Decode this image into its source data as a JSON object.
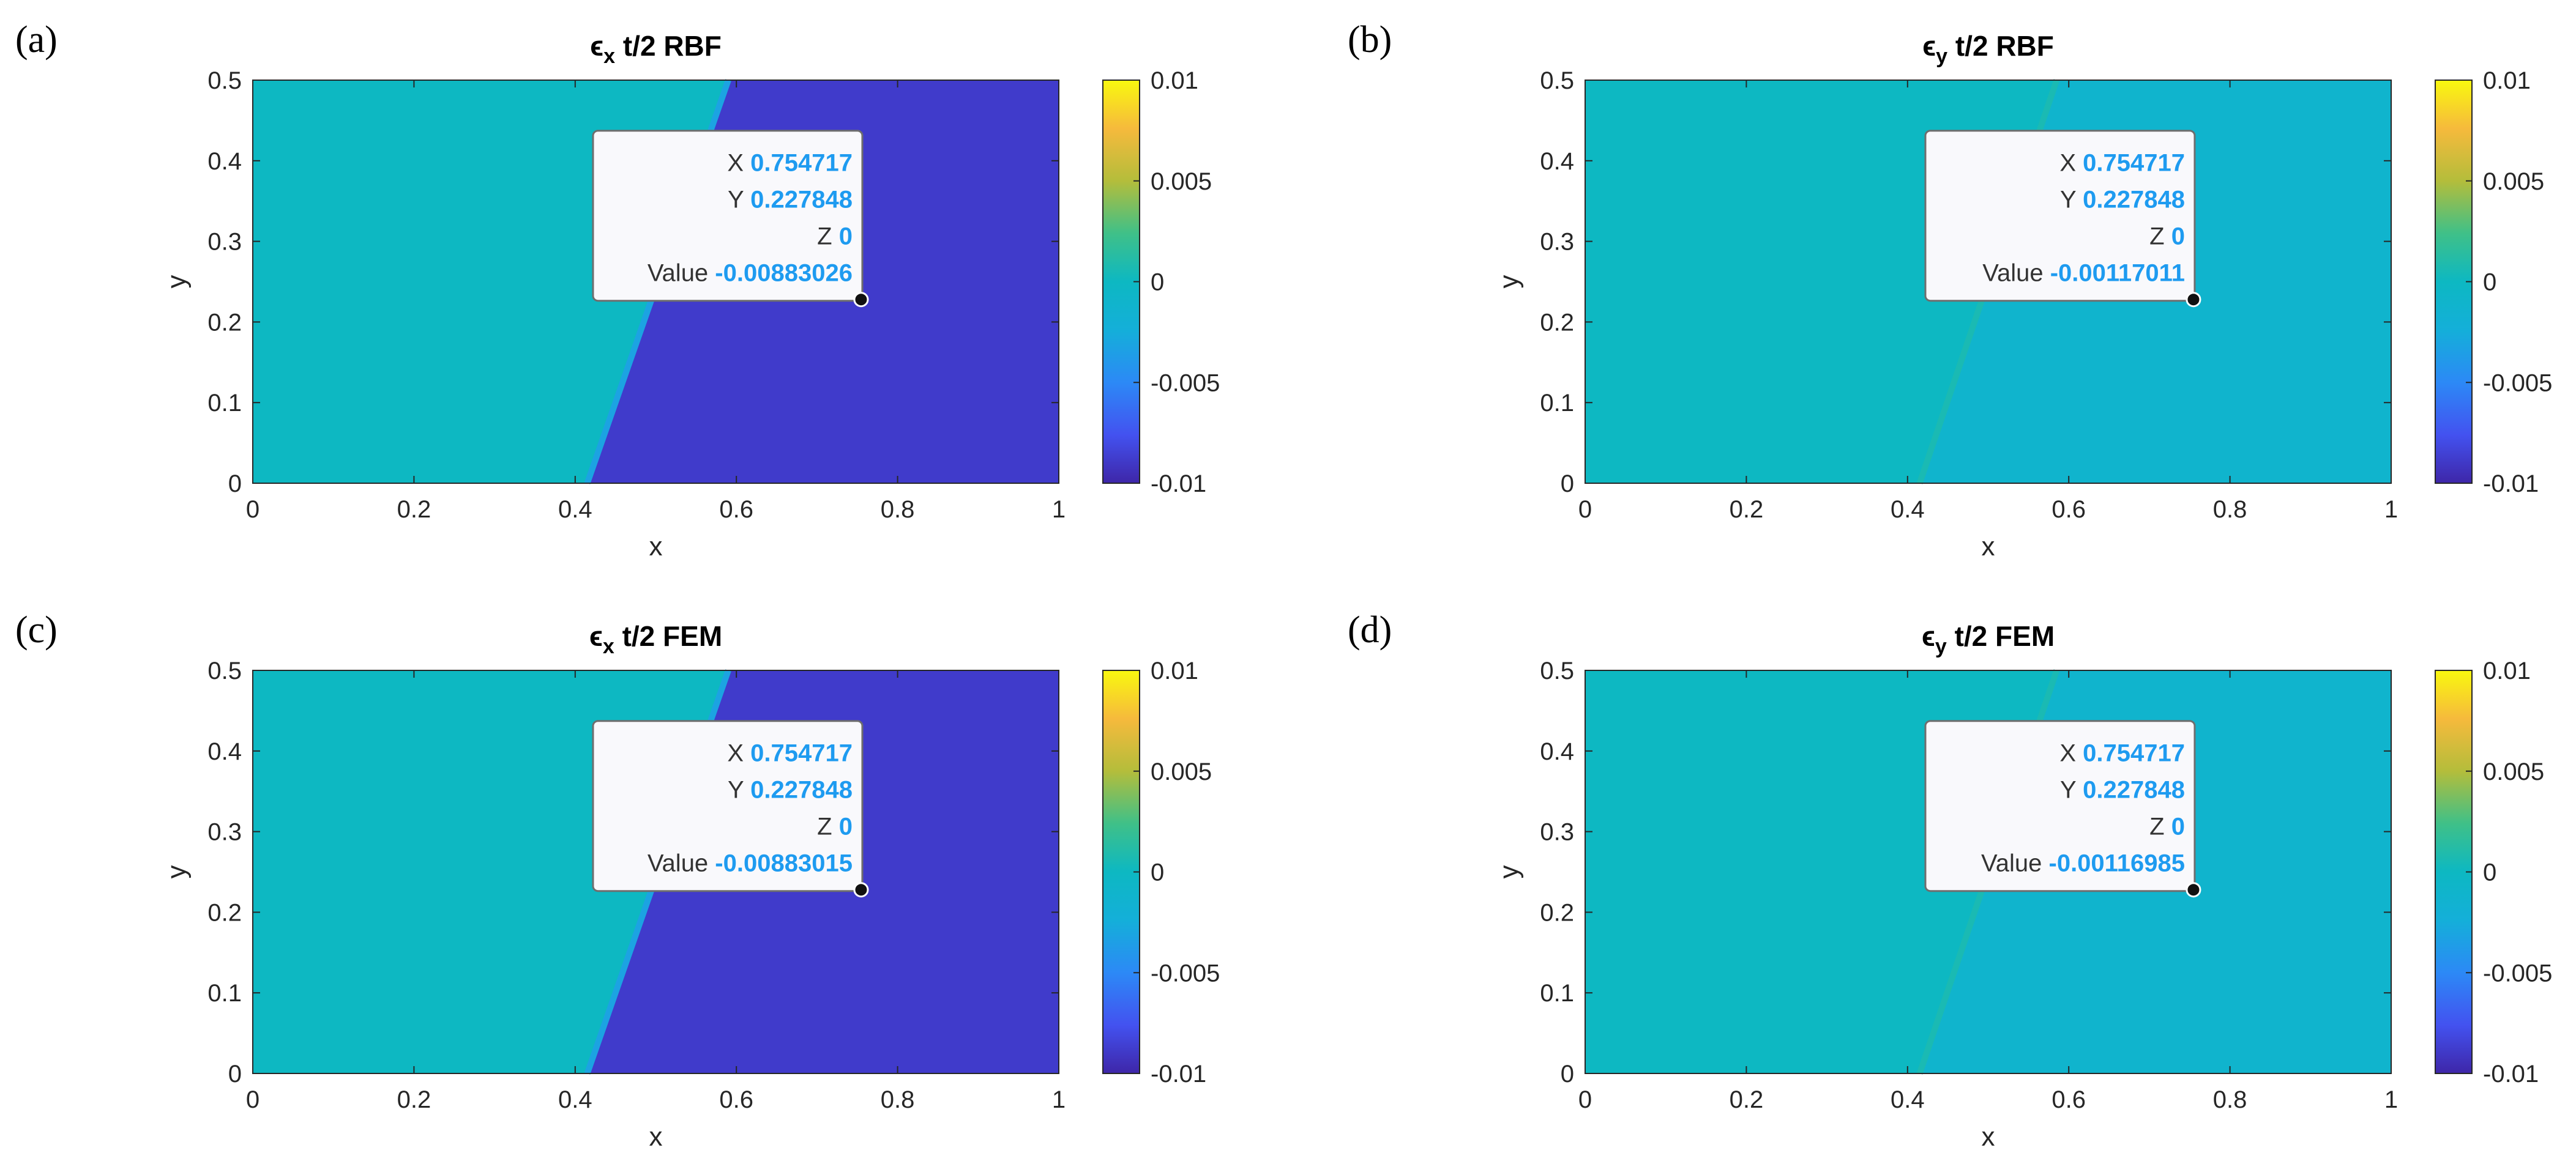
{
  "figure": {
    "colorbar": {
      "ticks": [
        "0.01",
        "0.005",
        "0",
        "-0.005",
        "-0.01"
      ],
      "stops": [
        {
          "offset": 0.0,
          "color": "#3e26a8"
        },
        {
          "offset": 0.12,
          "color": "#4352f0"
        },
        {
          "offset": 0.25,
          "color": "#2c89f6"
        },
        {
          "offset": 0.38,
          "color": "#14afd9"
        },
        {
          "offset": 0.5,
          "color": "#0db8c2"
        },
        {
          "offset": 0.62,
          "color": "#3fc088"
        },
        {
          "offset": 0.75,
          "color": "#b4bd3b"
        },
        {
          "offset": 0.88,
          "color": "#f6ba3c"
        },
        {
          "offset": 1.0,
          "color": "#f9f80f"
        }
      ]
    },
    "datatip": {
      "x_label": "X",
      "y_label": "Y",
      "z_label": "Z",
      "value_label": "Value",
      "highlight_color": "#1e9bf0"
    }
  },
  "chart_data": [
    {
      "type": "heatmap",
      "panel": "(a)",
      "title_symbol": "ϵ",
      "title_sub": "x",
      "title_rest": " t/2 RBF",
      "xlabel": "x",
      "ylabel": "y",
      "xlim": [
        0,
        1
      ],
      "ylim": [
        0,
        0.5
      ],
      "xticks": [
        "0",
        "0.2",
        "0.4",
        "0.6",
        "0.8",
        "1"
      ],
      "yticks": [
        "0",
        "0.1",
        "0.2",
        "0.3",
        "0.4",
        "0.5"
      ],
      "clim": [
        -0.01,
        0.01
      ],
      "left_region_value": 0.0,
      "right_region_value": -0.00883,
      "interface_bottom_x": 0.415,
      "interface_top_x": 0.59,
      "datatip": {
        "X": "0.754717",
        "Y": "0.227848",
        "Z": "0",
        "Value": "-0.00883026",
        "x": 0.754717,
        "y": 0.227848
      }
    },
    {
      "type": "heatmap",
      "panel": "(b)",
      "title_symbol": "ϵ",
      "title_sub": "y",
      "title_rest": " t/2 RBF",
      "xlabel": "x",
      "ylabel": "y",
      "xlim": [
        0,
        1
      ],
      "ylim": [
        0,
        0.5
      ],
      "xticks": [
        "0",
        "0.2",
        "0.4",
        "0.6",
        "0.8",
        "1"
      ],
      "yticks": [
        "0",
        "0.1",
        "0.2",
        "0.3",
        "0.4",
        "0.5"
      ],
      "clim": [
        -0.01,
        0.01
      ],
      "left_region_value": 0.0,
      "right_region_value": -0.00117,
      "interface_bottom_x": 0.415,
      "interface_top_x": 0.585,
      "datatip": {
        "X": "0.754717",
        "Y": "0.227848",
        "Z": "0",
        "Value": "-0.00117011",
        "x": 0.754717,
        "y": 0.227848
      }
    },
    {
      "type": "heatmap",
      "panel": "(c)",
      "title_symbol": "ϵ",
      "title_sub": "x",
      "title_rest": " t/2 FEM",
      "xlabel": "x",
      "ylabel": "y",
      "xlim": [
        0,
        1
      ],
      "ylim": [
        0,
        0.5
      ],
      "xticks": [
        "0",
        "0.2",
        "0.4",
        "0.6",
        "0.8",
        "1"
      ],
      "yticks": [
        "0",
        "0.1",
        "0.2",
        "0.3",
        "0.4",
        "0.5"
      ],
      "clim": [
        -0.01,
        0.01
      ],
      "left_region_value": 0.0,
      "right_region_value": -0.00883,
      "interface_bottom_x": 0.415,
      "interface_top_x": 0.59,
      "datatip": {
        "X": "0.754717",
        "Y": "0.227848",
        "Z": "0",
        "Value": "-0.00883015",
        "x": 0.754717,
        "y": 0.227848
      }
    },
    {
      "type": "heatmap",
      "panel": "(d)",
      "title_symbol": "ϵ",
      "title_sub": "y",
      "title_rest": " t/2 FEM",
      "xlabel": "x",
      "ylabel": "y",
      "xlim": [
        0,
        1
      ],
      "ylim": [
        0,
        0.5
      ],
      "xticks": [
        "0",
        "0.2",
        "0.4",
        "0.6",
        "0.8",
        "1"
      ],
      "yticks": [
        "0",
        "0.1",
        "0.2",
        "0.3",
        "0.4",
        "0.5"
      ],
      "clim": [
        -0.01,
        0.01
      ],
      "left_region_value": 0.0,
      "right_region_value": -0.00117,
      "interface_bottom_x": 0.415,
      "interface_top_x": 0.585,
      "datatip": {
        "X": "0.754717",
        "Y": "0.227848",
        "Z": "0",
        "Value": "-0.00116985",
        "x": 0.754717,
        "y": 0.227848
      }
    }
  ]
}
